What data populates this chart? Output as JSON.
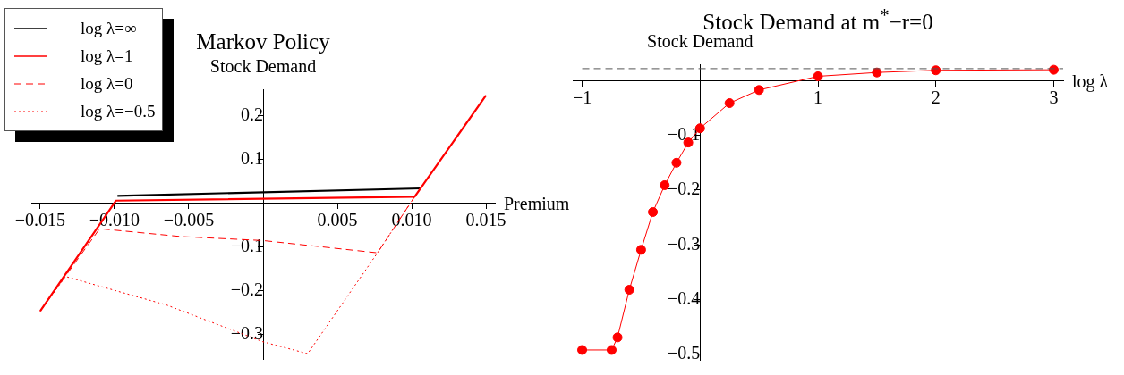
{
  "chart_data": [
    {
      "type": "line",
      "title": "Markov Policy",
      "xlabel": "Premium",
      "ylabel": "Stock Demand",
      "legend": "top left",
      "marker": "none",
      "xlim": [
        -0.0156,
        0.0156
      ],
      "ylim": [
        -0.355,
        0.26
      ],
      "xticks": [
        {
          "value": -0.015,
          "label": "−0.015"
        },
        {
          "value": -0.01,
          "label": "−0.010"
        },
        {
          "value": -0.005,
          "label": "−0.005"
        },
        {
          "value": 0.005,
          "label": "0.005"
        },
        {
          "value": 0.01,
          "label": "0.010"
        },
        {
          "value": 0.015,
          "label": "0.015"
        }
      ],
      "yticks": [
        {
          "value": -0.3,
          "label": "−0.3"
        },
        {
          "value": -0.2,
          "label": "−0.2"
        },
        {
          "value": -0.1,
          "label": "−0.1"
        },
        {
          "value": 0.1,
          "label": "0.1"
        },
        {
          "value": 0.2,
          "label": "0.2"
        }
      ],
      "series": [
        {
          "name": "log λ=∞",
          "color": "#000000",
          "line_style": "solid",
          "x": [
            -0.0098,
            0.0106
          ],
          "values": [
            0.017,
            0.034
          ]
        },
        {
          "name": "log λ=1",
          "color": "#ff0000",
          "line_style": "solid",
          "x": [
            -0.015,
            -0.0099,
            0.0102,
            0.015
          ],
          "values": [
            -0.246,
            0.006,
            0.015,
            0.246
          ]
        },
        {
          "name": "log λ=0",
          "color": "#ff0000",
          "line_style": "dashed",
          "x": [
            -0.015,
            -0.011,
            -0.0055,
            0,
            0.0077,
            0.0102,
            0.015
          ],
          "values": [
            -0.246,
            -0.058,
            -0.076,
            -0.085,
            -0.113,
            0.015,
            0.246
          ]
        },
        {
          "name": "log λ=−0.5",
          "color": "#ff0000",
          "line_style": "dotted",
          "x": [
            -0.015,
            -0.0133,
            -0.0065,
            0,
            0.003,
            0.0077,
            0.0102,
            0.015
          ],
          "values": [
            -0.246,
            -0.167,
            -0.232,
            -0.316,
            -0.343,
            -0.113,
            0.015,
            0.246
          ]
        }
      ]
    },
    {
      "type": "line",
      "title": "Stock Demand at m$^{*}$−r=0",
      "xlabel": "log λ",
      "ylabel": "Stock Demand",
      "marker": "circle",
      "xlim": [
        -1.08,
        3.08
      ],
      "ylim": [
        -0.51,
        0.03
      ],
      "xticks": [
        {
          "value": -1,
          "label": "−1"
        },
        1,
        2,
        3
      ],
      "yticks": [
        {
          "value": -0.5,
          "label": "−0.5"
        },
        {
          "value": -0.4,
          "label": "−0.4"
        },
        {
          "value": -0.3,
          "label": "−0.3"
        },
        {
          "value": -0.2,
          "label": "−0.2"
        },
        {
          "value": -0.1,
          "label": "−0.1"
        }
      ],
      "ref_lines": [
        {
          "axis": "y",
          "value": 0.022,
          "color": "#555555",
          "line_style": "dashed"
        }
      ],
      "series": [
        {
          "color": "#ff0000",
          "x": [
            -1,
            -0.75,
            -0.7,
            -0.6,
            -0.5,
            -0.4,
            -0.3,
            -0.2,
            -0.1,
            0,
            0.25,
            0.5,
            1,
            1.5,
            2,
            3
          ],
          "values": [
            -0.492,
            -0.492,
            -0.469,
            -0.382,
            -0.309,
            -0.24,
            -0.191,
            -0.15,
            -0.113,
            -0.087,
            -0.041,
            -0.017,
            0.008,
            0.015,
            0.019,
            0.02
          ]
        }
      ]
    }
  ]
}
